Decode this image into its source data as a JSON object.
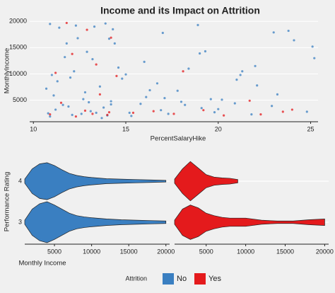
{
  "chart_data": [
    {
      "type": "scatter",
      "title": "Income and its Impact on Attrition",
      "xlabel": "PercentSalaryHike",
      "ylabel": "MonthlyIncome",
      "xlim": [
        9.8,
        25.4
      ],
      "ylim": [
        900,
        20700
      ],
      "xticks": [
        10,
        15,
        20,
        25
      ],
      "yticks": [
        5000,
        10000,
        15000,
        20000
      ],
      "grid": true,
      "series": [
        {
          "color": "#3a7fc1",
          "x": [
            10.8,
            11.2,
            11.6,
            12.1,
            12.7,
            13.1,
            13.8,
            14.2,
            10.9,
            11.4,
            12.3,
            12.8,
            13.3,
            13.9,
            14.3,
            11.0,
            11.7,
            12.2,
            12.9,
            13.2,
            14.1,
            14.6,
            15.2,
            15.8,
            16.1,
            16.9,
            17.3,
            17.8,
            18.2,
            18.9,
            19.1,
            19.8,
            20.2,
            20.9,
            21.3,
            21.8,
            22.1,
            22.9,
            23.2,
            24.1,
            24.8,
            25.1,
            10.7,
            11.3,
            12.0,
            13.0,
            14.0,
            15.0,
            16.0,
            17.0,
            18.0,
            19.0,
            20.0,
            21.0,
            22.0,
            23.0,
            11.1,
            12.4,
            13.6,
            14.4,
            16.3,
            18.4,
            11.9,
            13.4,
            14.8,
            17.1,
            19.3,
            21.2,
            23.8,
            25.2,
            10.9,
            11.8,
            12.6,
            13.7,
            14.2,
            15.3,
            16.7,
            19.6
          ],
          "values": [
            2500,
            3200,
            4100,
            2200,
            5200,
            2900,
            3600,
            4800,
            19500,
            18800,
            19200,
            6500,
            19000,
            19600,
            18500,
            9800,
            13200,
            10500,
            14200,
            12800,
            16700,
            11200,
            2600,
            4300,
            5600,
            3100,
            2400,
            6800,
            4100,
            19300,
            3500,
            2700,
            5100,
            4400,
            10500,
            2300,
            7800,
            3900,
            6100,
            16400,
            2800,
            15200,
            7200,
            8600,
            9300,
            4600,
            2100,
            9900,
            12300,
            17800,
            4700,
            13900,
            3300,
            8900,
            11500,
            17900,
            5900,
            16800,
            7600,
            15800,
            6900,
            11000,
            3800,
            2600,
            9100,
            5400,
            14300,
            9800,
            18200,
            13000,
            1900,
            15800,
            2400,
            1600,
            4200,
            2000,
            8200,
            5200
          ]
        },
        {
          "color": "#e41a1c",
          "x": [
            10.9,
            11.5,
            12.3,
            12.8,
            13.2,
            13.6,
            14.1,
            14.5,
            11.2,
            12.1,
            13.4,
            14.0,
            15.4,
            16.5,
            17.6,
            19.2,
            20.3,
            21.7,
            22.3,
            23.5,
            11.8,
            12.9,
            14.2,
            18.1,
            24.0
          ],
          "values": [
            2300,
            4500,
            1900,
            3000,
            2400,
            6100,
            2700,
            9600,
            10200,
            13800,
            11800,
            2200,
            2600,
            2900,
            2400,
            3100,
            2100,
            4900,
            2300,
            2800,
            19700,
            18400,
            16900,
            10500,
            3200
          ]
        }
      ]
    },
    {
      "type": "violin",
      "xlabel": "Monthly Income",
      "ylabel": "Performance Rating",
      "legend_title": "Attrition",
      "categories": [
        "3",
        "4"
      ],
      "xlim": [
        1000,
        20500
      ],
      "xticks": [
        5000,
        10000,
        15000,
        20000
      ],
      "x_grid": [
        1000,
        2000,
        3000,
        4000,
        5000,
        6000,
        7000,
        8000,
        9000,
        10000,
        12000,
        14000,
        16000,
        18000,
        20000
      ],
      "series": [
        {
          "name": "No",
          "color": "#3a7fc1",
          "widths": [
            [
              0.05,
              0.32,
              0.45,
              0.5,
              0.42,
              0.32,
              0.22,
              0.16,
              0.13,
              0.11,
              0.08,
              0.06,
              0.05,
              0.04,
              0.03
            ],
            [
              0.05,
              0.3,
              0.42,
              0.45,
              0.38,
              0.28,
              0.19,
              0.14,
              0.11,
              0.09,
              0.06,
              0.05,
              0.04,
              0.03,
              0.02
            ]
          ]
        },
        {
          "name": "Yes",
          "color": "#e41a1c",
          "widths": [
            [
              0.05,
              0.32,
              0.42,
              0.35,
              0.22,
              0.16,
              0.12,
              0.1,
              0.1,
              0.1,
              0.05,
              0.03,
              0.03,
              0.06,
              0.08
            ],
            [
              0.05,
              0.3,
              0.48,
              0.32,
              0.16,
              0.1,
              0.08,
              0.07,
              0.04,
              null,
              null,
              null,
              null,
              null,
              null
            ]
          ]
        }
      ]
    }
  ]
}
